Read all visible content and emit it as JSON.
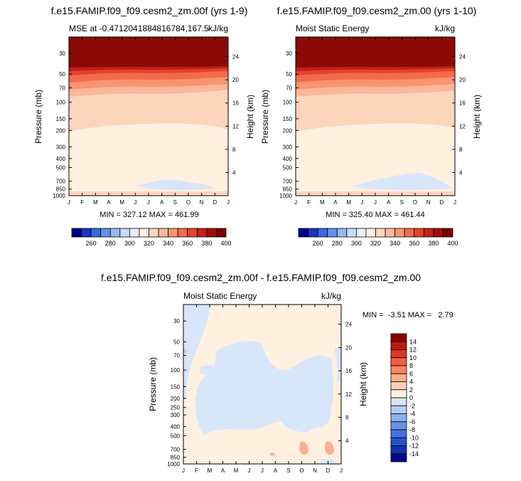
{
  "panels": [
    {
      "title": "f.e15.FAMIP.f09_f09.cesm2_zm.00f (yrs 1-9)",
      "left_label": "MSE at -0.4712041884816784,167.5",
      "right_label": "kJ/kg",
      "stats": "MIN = 327.12 MAX = 461.99"
    },
    {
      "title": "f.e15.FAMIP.f09_f09.cesm2_zm.00 (yrs 1-10)",
      "left_label": "Moist Static Energy",
      "right_label": "kJ/kg",
      "stats": "MIN = 325.40 MAX = 461.44"
    },
    {
      "title": "f.e15.FAMIP.f09_f09.cesm2_zm.00f - f.e15.FAMIP.f09_f09.cesm2_zm.00",
      "left_label": "Moist Static Energy",
      "right_label": "kJ/kg",
      "stats": "MIN =  -3.51 MAX =   2.79"
    }
  ],
  "axes": {
    "ylabel": "Pressure (mb)",
    "y2label": "Height (km)",
    "x_ticks": [
      "J",
      "F",
      "M",
      "A",
      "M",
      "J",
      "J",
      "A",
      "S",
      "O",
      "N",
      "D",
      "J"
    ],
    "p_ticks": [
      30,
      50,
      70,
      100,
      150,
      200,
      250,
      300,
      400,
      500,
      700,
      850,
      1000
    ],
    "top_p_ticks": [
      30,
      50,
      70,
      100,
      150,
      200,
      300,
      400,
      500,
      700,
      850,
      1000
    ],
    "h_ticks": [
      4,
      8,
      12,
      16,
      20,
      24
    ]
  },
  "colorbars": {
    "mse": {
      "labels": [
        "260",
        "280",
        "300",
        "320",
        "340",
        "360",
        "380",
        "400"
      ],
      "colors": [
        "#00008c",
        "#1a33c4",
        "#3b68dc",
        "#6690e8",
        "#98b8f0",
        "#c7dcf8",
        "#e6eefc",
        "#fff0e0",
        "#fdd5bc",
        "#fcb79a",
        "#f8946f",
        "#f26b4b",
        "#e1442b",
        "#c41f15",
        "#9e0c0a",
        "#7a0202"
      ]
    },
    "diff": {
      "labels": [
        "14",
        "12",
        "10",
        "8",
        "6",
        "4",
        "2",
        "0",
        "-2",
        "-4",
        "-6",
        "-8",
        "-10",
        "-12",
        "-14"
      ],
      "colors": [
        "#8c0000",
        "#c4160f",
        "#e03625",
        "#f25e3e",
        "#f8865f",
        "#fcae8b",
        "#fdd0b6",
        "#fff0e0",
        "#d8e6fa",
        "#b4ccf4",
        "#8eb0ee",
        "#6a90e6",
        "#4570dc",
        "#2650cc",
        "#1230b0",
        "#00088c"
      ]
    }
  },
  "chart_data": [
    {
      "type": "heatmap",
      "title": "f.e15.FAMIP.f09_f09.cesm2_zm.00f (yrs 1-9)",
      "xlabel": "",
      "ylabel": "Pressure (mb)",
      "y2label": "Height (km)",
      "x": [
        "J",
        "F",
        "M",
        "A",
        "M",
        "J",
        "J",
        "A",
        "S",
        "O",
        "N",
        "D",
        "J"
      ],
      "y_scale": "log",
      "ylim": [
        1000,
        20
      ],
      "units": "kJ/kg",
      "min": 327.12,
      "max": 461.99,
      "contour_levels": [
        260,
        270,
        280,
        290,
        300,
        310,
        320,
        330,
        340,
        350,
        360,
        370,
        380,
        390,
        400
      ],
      "bands": [
        {
          "range": "> 400",
          "top_p": 20,
          "bottom_p": 50
        },
        {
          "range": "380-400",
          "top_p": 50,
          "bottom_p": 58
        },
        {
          "range": "360-380",
          "top_p": 58,
          "bottom_p": 70
        },
        {
          "range": "350-360",
          "top_p": 70,
          "bottom_p": 85
        },
        {
          "range": "340-350",
          "top_p": 85,
          "bottom_p": 200
        },
        {
          "range": "330-340",
          "top_p": 200,
          "bottom_p": 1000
        },
        {
          "range": "320-330",
          "region": "750-850 mb, May-Nov"
        }
      ]
    },
    {
      "type": "heatmap",
      "title": "f.e15.FAMIP.f09_f09.cesm2_zm.00 (yrs 1-10)",
      "xlabel": "",
      "ylabel": "Pressure (mb)",
      "y2label": "Height (km)",
      "x": [
        "J",
        "F",
        "M",
        "A",
        "M",
        "J",
        "J",
        "A",
        "S",
        "O",
        "N",
        "D",
        "J"
      ],
      "y_scale": "log",
      "ylim": [
        1000,
        20
      ],
      "units": "kJ/kg",
      "min": 325.4,
      "max": 461.44,
      "contour_levels": [
        260,
        270,
        280,
        290,
        300,
        310,
        320,
        330,
        340,
        350,
        360,
        370,
        380,
        390,
        400
      ],
      "bands": [
        {
          "range": "> 400",
          "top_p": 20,
          "bottom_p": 50
        },
        {
          "range": "380-400",
          "top_p": 50,
          "bottom_p": 58
        },
        {
          "range": "360-380",
          "top_p": 58,
          "bottom_p": 70
        },
        {
          "range": "350-360",
          "top_p": 70,
          "bottom_p": 85
        },
        {
          "range": "340-350",
          "top_p": 85,
          "bottom_p": 200
        },
        {
          "range": "330-340",
          "top_p": 200,
          "bottom_p": 1000
        },
        {
          "range": "320-330",
          "region": "680-880 mb, Apr-Dec"
        }
      ]
    },
    {
      "type": "heatmap",
      "title": "f.e15.FAMIP.f09_f09.cesm2_zm.00f - f.e15.FAMIP.f09_f09.cesm2_zm.00",
      "xlabel": "",
      "ylabel": "Pressure (mb)",
      "y2label": "Height (km)",
      "x": [
        "J",
        "F",
        "M",
        "A",
        "M",
        "J",
        "J",
        "A",
        "S",
        "O",
        "N",
        "D",
        "J"
      ],
      "y_scale": "log",
      "ylim": [
        1000,
        20
      ],
      "units": "kJ/kg",
      "min": -3.51,
      "max": 2.79,
      "contour_levels": [
        -14,
        -12,
        -10,
        -8,
        -6,
        -4,
        -2,
        0,
        2,
        4,
        6,
        8,
        10,
        12,
        14
      ],
      "bands": [
        {
          "range": "0-2",
          "region": "most of domain"
        },
        {
          "range": "-2-0",
          "region": "Feb-Dec, 100-500 mb; Jan-Feb upper levels"
        },
        {
          "range": "2-4",
          "region": "small patches near 750-850 mb, Oct and Dec"
        }
      ]
    }
  ]
}
